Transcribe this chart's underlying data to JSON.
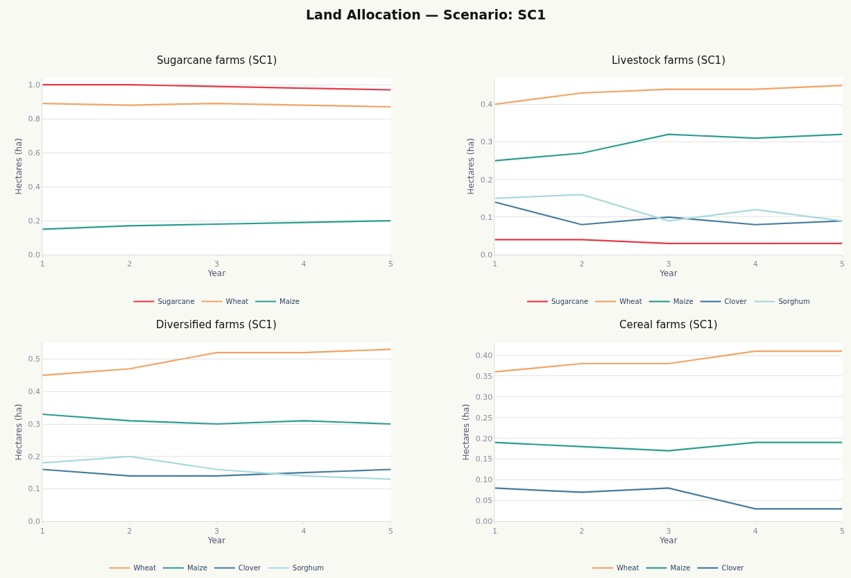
{
  "chart_data": [
    {
      "type": "line",
      "title": "Sugarcane farms (SC1)",
      "xlabel": "Year",
      "ylabel": "Hectares (ha)",
      "annotations": [
        "Land Allocation — Scenario: SC1"
      ],
      "x": [
        1,
        2,
        3,
        4,
        5
      ],
      "xlim": [
        1,
        5
      ],
      "xticks": [
        1,
        2,
        3,
        4,
        5
      ],
      "ylim": [
        0,
        1.04
      ],
      "yticks": [
        {
          "value": 0,
          "label": "0.0"
        },
        0.2,
        0.4,
        0.6,
        0.8,
        {
          "value": 1,
          "label": "1.0"
        }
      ],
      "grid": "y",
      "legend": "bottom",
      "series": [
        {
          "name": "Sugarcane",
          "color": "#e63946",
          "values": [
            1.0,
            1.0,
            0.99,
            0.98,
            0.97
          ]
        },
        {
          "name": "Wheat",
          "color": "#f4a261",
          "values": [
            0.89,
            0.88,
            0.89,
            0.88,
            0.87
          ]
        },
        {
          "name": "Maize",
          "color": "#2a9d8f",
          "values": [
            0.15,
            0.17,
            0.18,
            0.19,
            0.2
          ]
        }
      ]
    },
    {
      "type": "line",
      "title": "Livestock farms (SC1)",
      "xlabel": "Year",
      "ylabel": "Hectares (ha)",
      "x": [
        1,
        2,
        3,
        4,
        5
      ],
      "xlim": [
        1,
        5
      ],
      "xticks": [
        1,
        2,
        3,
        4,
        5
      ],
      "ylim": [
        0,
        0.47
      ],
      "yticks": [
        {
          "value": 0,
          "label": "0.0"
        },
        0.1,
        0.2,
        0.3,
        0.4
      ],
      "grid": "y",
      "legend": "bottom",
      "series": [
        {
          "name": "Sugarcane",
          "color": "#e63946",
          "values": [
            0.04,
            0.04,
            0.03,
            0.03,
            0.03
          ]
        },
        {
          "name": "Wheat",
          "color": "#f4a261",
          "values": [
            0.4,
            0.43,
            0.44,
            0.44,
            0.45
          ]
        },
        {
          "name": "Maize",
          "color": "#2a9d8f",
          "values": [
            0.25,
            0.27,
            0.32,
            0.31,
            0.32
          ]
        },
        {
          "name": "Clover",
          "color": "#457b9d",
          "values": [
            0.14,
            0.08,
            0.1,
            0.08,
            0.09
          ]
        },
        {
          "name": "Sorghum",
          "color": "#a8dadc",
          "values": [
            0.15,
            0.16,
            0.09,
            0.12,
            0.09
          ]
        }
      ]
    },
    {
      "type": "line",
      "title": "Diversified farms (SC1)",
      "xlabel": "Year",
      "ylabel": "Hectares (ha)",
      "x": [
        1,
        2,
        3,
        4,
        5
      ],
      "xlim": [
        1,
        5
      ],
      "xticks": [
        1,
        2,
        3,
        4,
        5
      ],
      "ylim": [
        0,
        0.55
      ],
      "yticks": [
        {
          "value": 0,
          "label": "0.0"
        },
        0.1,
        0.2,
        0.3,
        0.4,
        0.5
      ],
      "grid": "y",
      "legend": "bottom",
      "series": [
        {
          "name": "Wheat",
          "color": "#f4a261",
          "values": [
            0.45,
            0.47,
            0.52,
            0.52,
            0.53
          ]
        },
        {
          "name": "Maize",
          "color": "#2a9d8f",
          "values": [
            0.33,
            0.31,
            0.3,
            0.31,
            0.3
          ]
        },
        {
          "name": "Clover",
          "color": "#457b9d",
          "values": [
            0.16,
            0.14,
            0.14,
            0.15,
            0.16
          ]
        },
        {
          "name": "Sorghum",
          "color": "#a8dadc",
          "values": [
            0.18,
            0.2,
            0.16,
            0.14,
            0.13
          ]
        }
      ]
    },
    {
      "type": "line",
      "title": "Cereal farms (SC1)",
      "xlabel": "Year",
      "ylabel": "Hectares (ha)",
      "x": [
        1,
        2,
        3,
        4,
        5
      ],
      "xlim": [
        1,
        5
      ],
      "xticks": [
        1,
        2,
        3,
        4,
        5
      ],
      "ylim": [
        0,
        0.43
      ],
      "yticks": [
        {
          "value": 0,
          "label": "0.00"
        },
        {
          "value": 0.05,
          "label": "0.05"
        },
        {
          "value": 0.1,
          "label": "0.10"
        },
        {
          "value": 0.15,
          "label": "0.15"
        },
        {
          "value": 0.2,
          "label": "0.20"
        },
        {
          "value": 0.25,
          "label": "0.25"
        },
        {
          "value": 0.3,
          "label": "0.30"
        },
        {
          "value": 0.35,
          "label": "0.35"
        },
        {
          "value": 0.4,
          "label": "0.40"
        }
      ],
      "grid": "y",
      "legend": "bottom",
      "series": [
        {
          "name": "Wheat",
          "color": "#f4a261",
          "values": [
            0.36,
            0.38,
            0.38,
            0.41,
            0.41
          ]
        },
        {
          "name": "Maize",
          "color": "#2a9d8f",
          "values": [
            0.19,
            0.18,
            0.17,
            0.19,
            0.19
          ]
        },
        {
          "name": "Clover",
          "color": "#457b9d",
          "values": [
            0.08,
            0.07,
            0.08,
            0.03,
            0.03
          ]
        }
      ]
    }
  ]
}
